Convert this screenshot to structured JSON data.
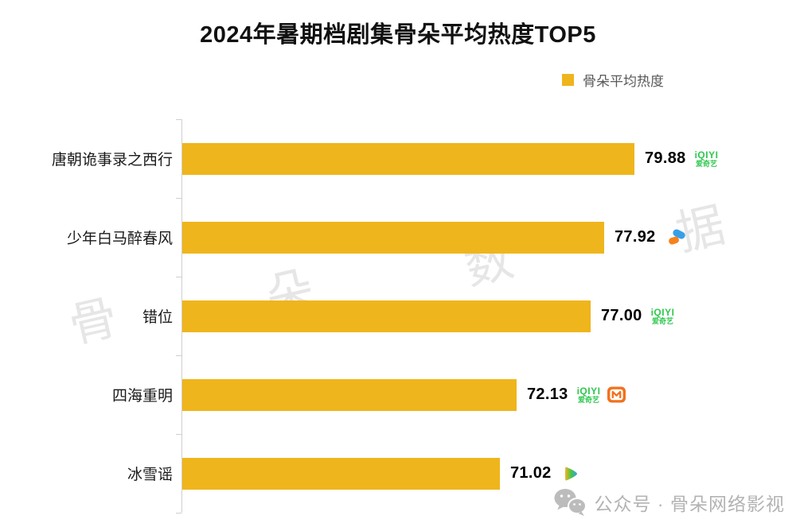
{
  "title": "2024年暑期档剧集骨朵平均热度TOP5",
  "legend": {
    "label": "骨朵平均热度",
    "color": "#EFB51C"
  },
  "chart_data": {
    "type": "bar",
    "orientation": "horizontal",
    "title": "2024年暑期档剧集骨朵平均热度TOP5",
    "series_name": "骨朵平均热度",
    "categories": [
      "唐朝诡事录之西行",
      "少年白马醉春风",
      "错位",
      "四海重明",
      "冰雪谣"
    ],
    "values": [
      79.88,
      77.92,
      77.0,
      72.13,
      71.02
    ],
    "value_labels": [
      "79.88",
      "77.92",
      "77.00",
      "72.13",
      "71.02"
    ],
    "platform_icons": [
      [
        "iqiyi"
      ],
      [
        "tencent-video-mark"
      ],
      [
        "iqiyi"
      ],
      [
        "iqiyi",
        "mango-tv"
      ],
      [
        "tencent-video-play"
      ]
    ],
    "bar_color": "#EFB51C",
    "xlim": [
      50,
      85
    ],
    "grid": false,
    "legend_position": "top-right"
  },
  "logos": {
    "iqiyi": {
      "line1": "iQIYI",
      "line2": "爱奇艺",
      "color": "#2EC84E"
    },
    "tencent_video_colors": {
      "blue": "#379FE8",
      "orange": "#F5831C",
      "green": "#45C73E",
      "yellow": "#F7B12C"
    },
    "mango_tv_color": "#F2711C"
  },
  "watermarks": [
    "骨",
    "朵",
    "数",
    "据"
  ],
  "footer": {
    "text": "公众号 · 骨朵网络影视"
  }
}
